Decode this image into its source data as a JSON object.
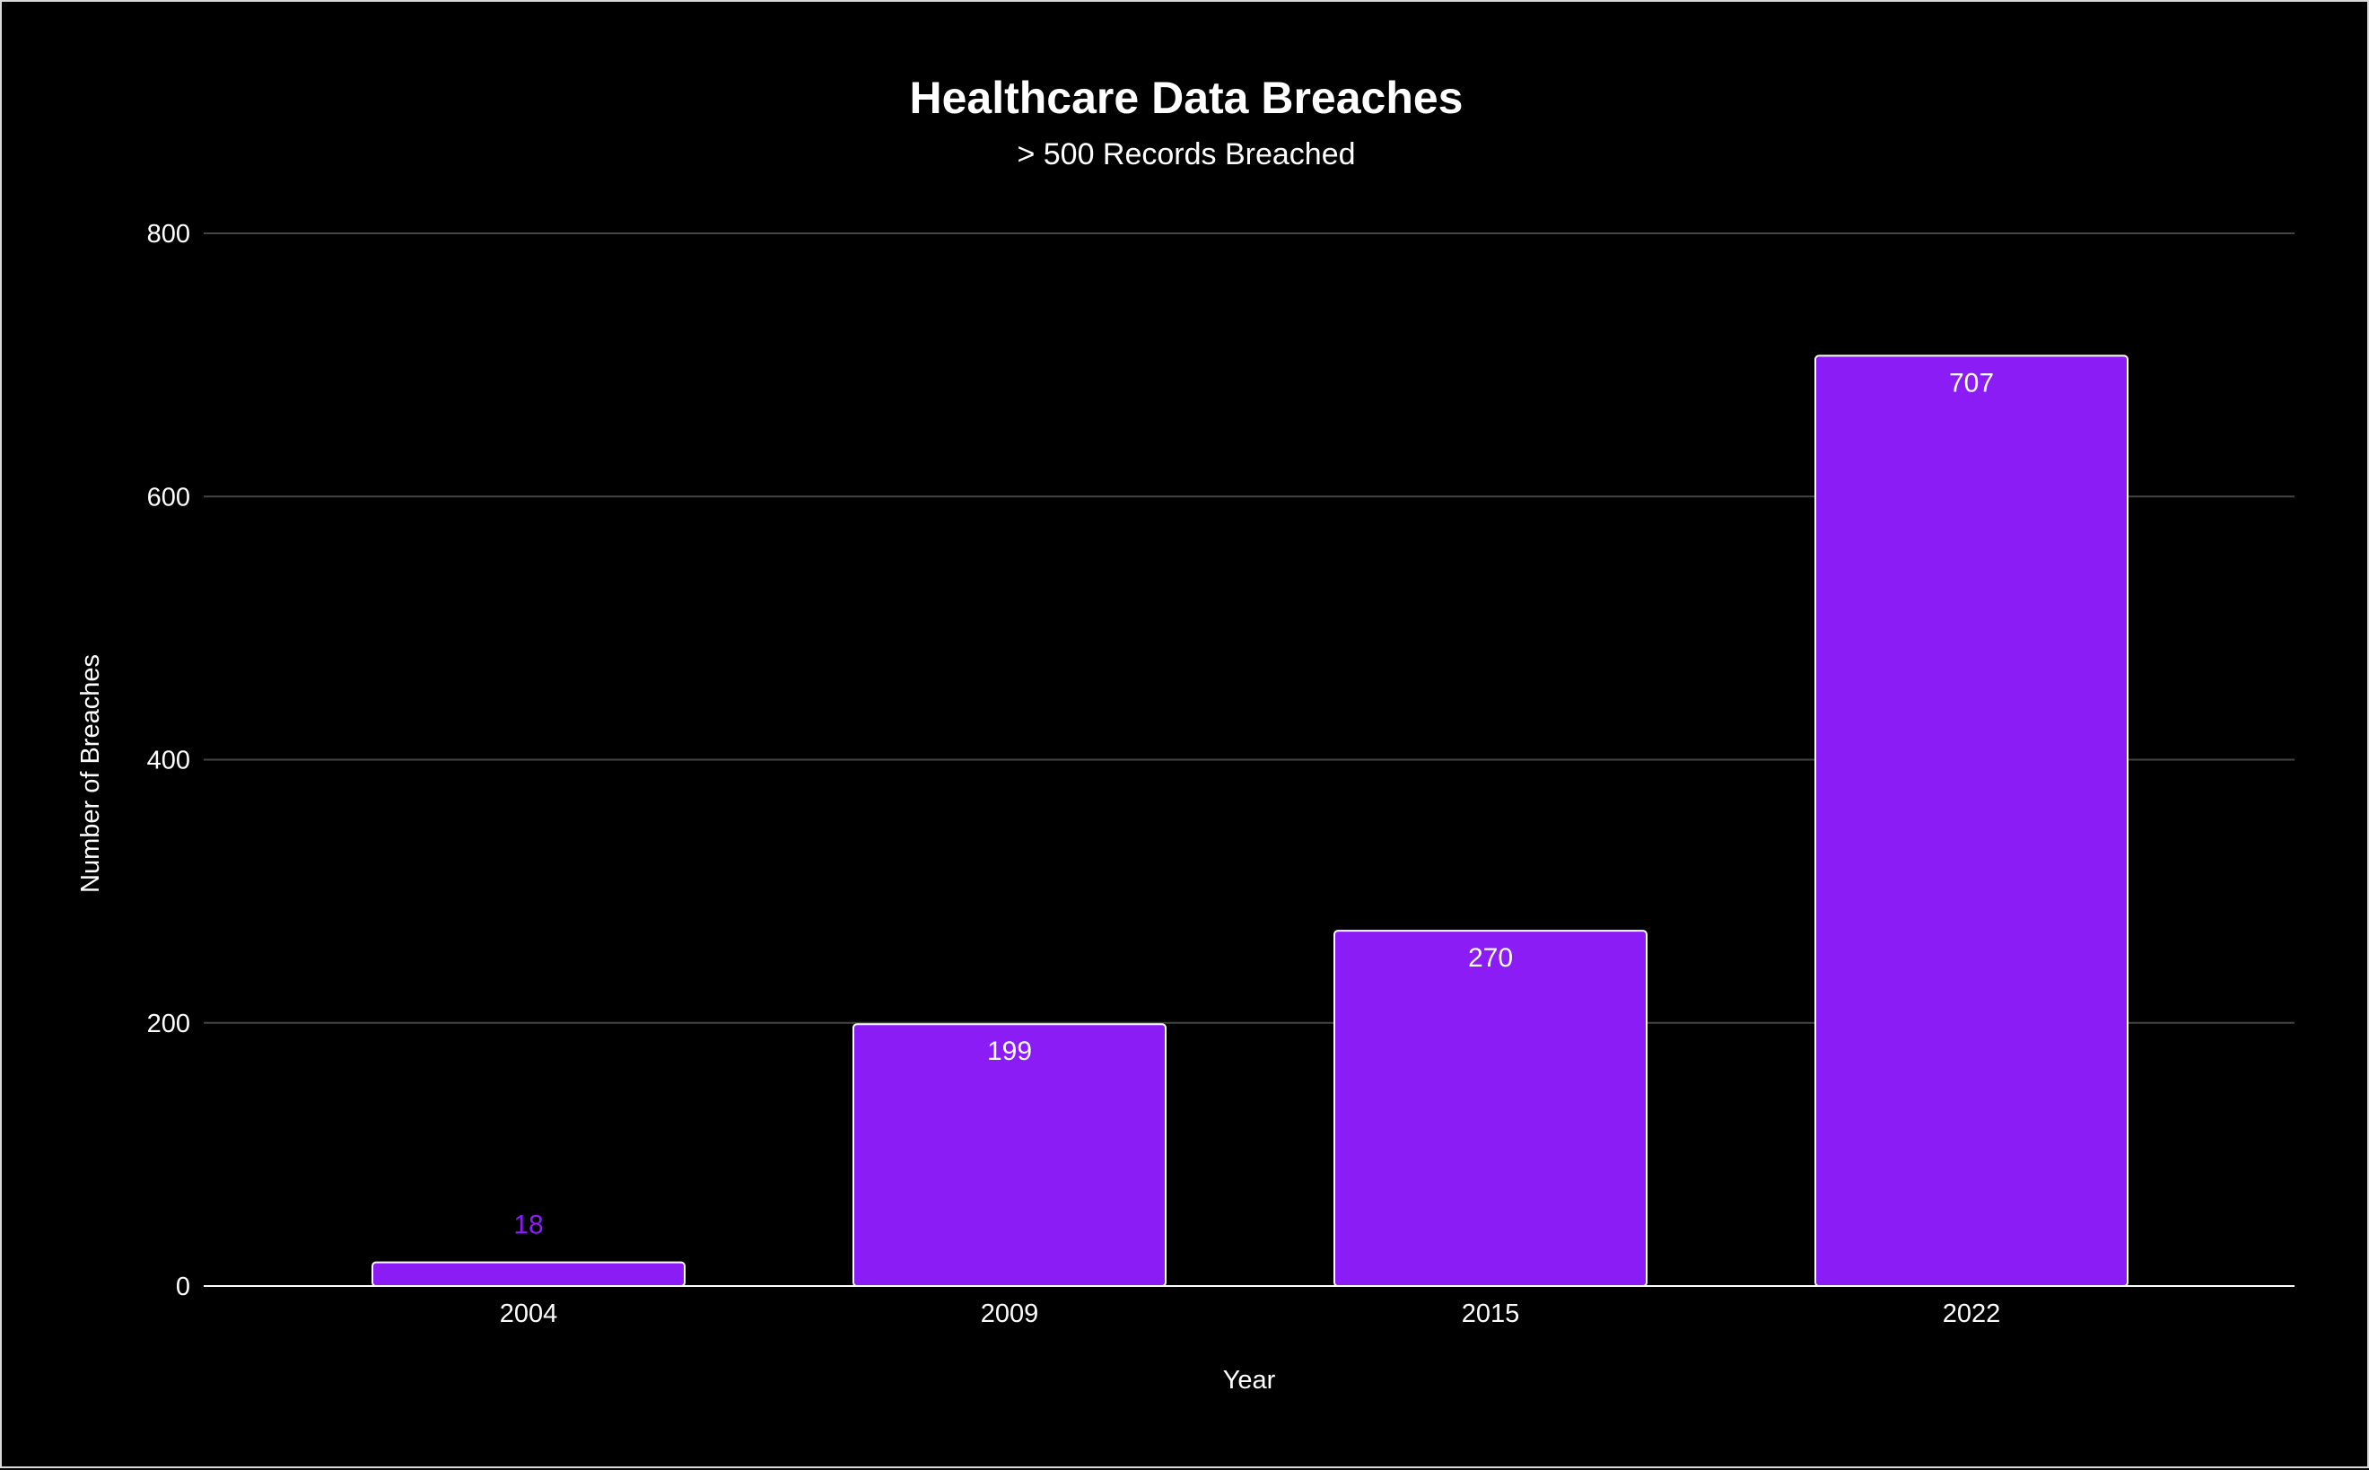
{
  "chart_data": {
    "type": "bar",
    "title": "Healthcare Data Breaches",
    "subtitle": "> 500 Records Breached",
    "xlabel": "Year",
    "ylabel": "Number of Breaches",
    "categories": [
      "2004",
      "2009",
      "2015",
      "2022"
    ],
    "series": [
      {
        "values": [
          18,
          199,
          270,
          707
        ]
      }
    ],
    "data_labels": [
      "18",
      "199",
      "270",
      "707"
    ],
    "ylim": [
      0,
      800
    ],
    "yticks": [
      0,
      200,
      400,
      600,
      800
    ],
    "ytick_labels": [
      "0",
      "200",
      "400",
      "600",
      "800"
    ],
    "grid": true,
    "legend": "none",
    "colors": {
      "background": "#000000",
      "bar_fill": "#8c1cf5",
      "bar_stroke": "#ffffff",
      "gridline": "#444444",
      "axis_line": "#ffffff",
      "text": "#ffffff",
      "outside_label": "#8c1cf5"
    }
  }
}
